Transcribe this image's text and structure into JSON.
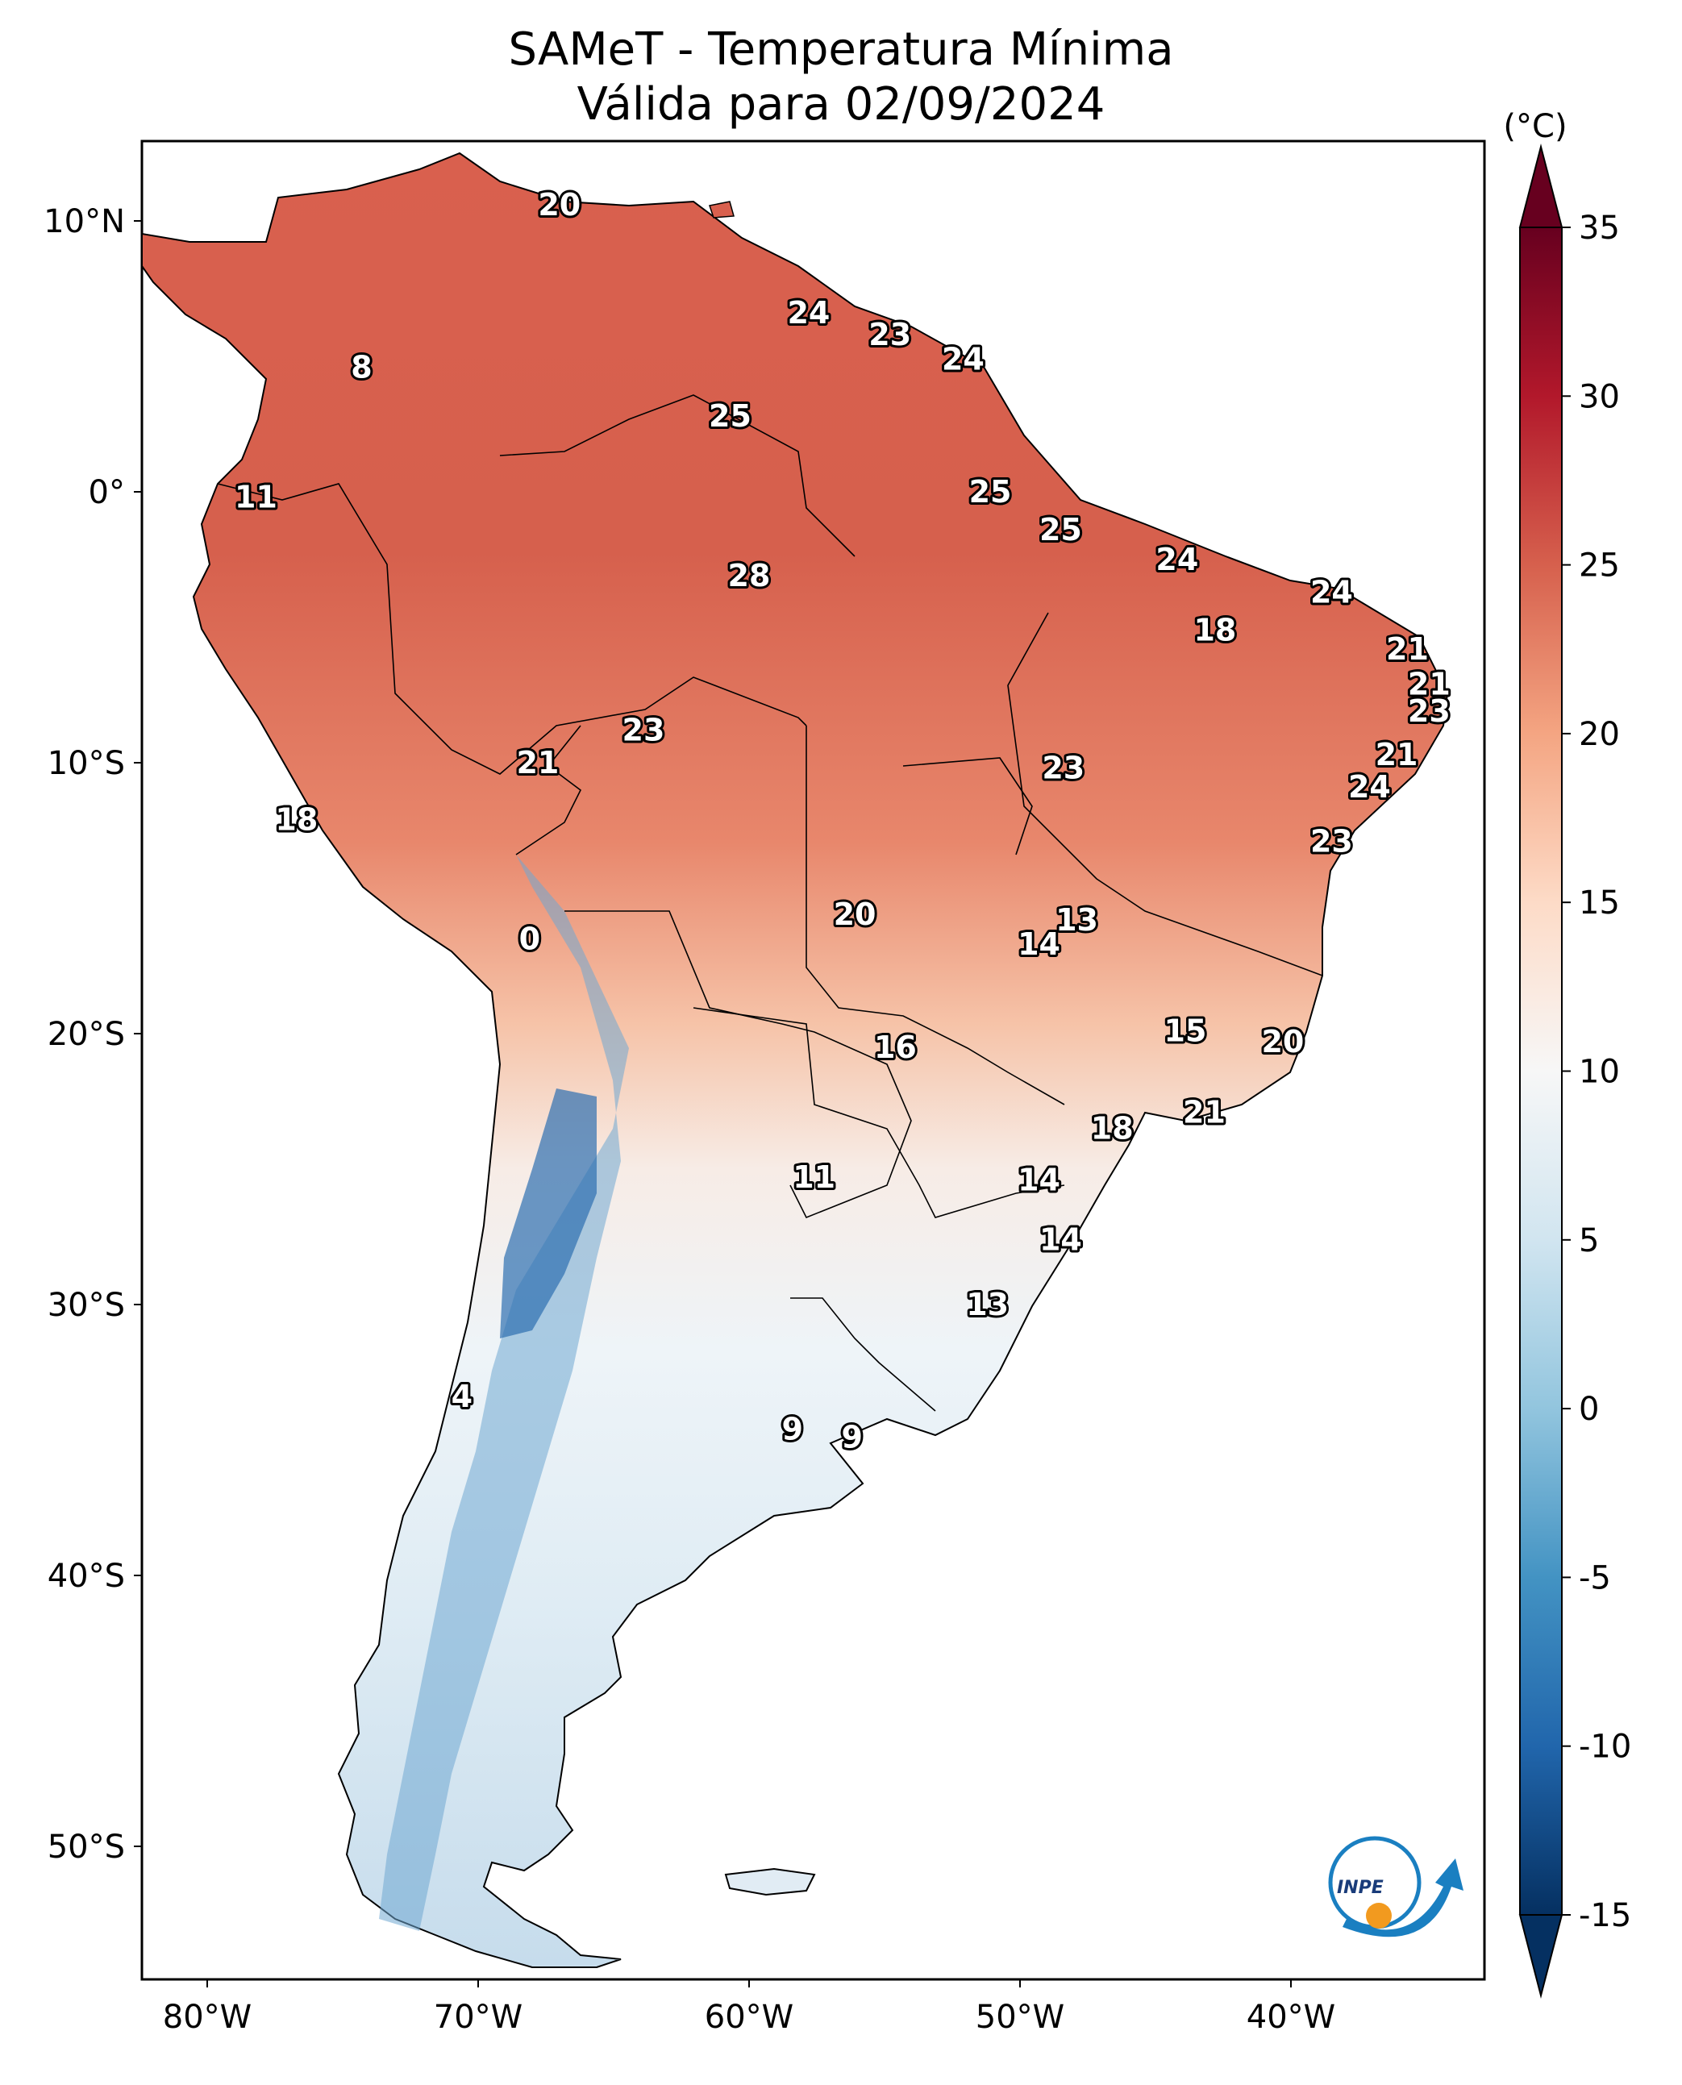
{
  "title_line1": "SAMeT - Temperatura Mínima",
  "title_line2": "Válida para 02/09/2024",
  "colorbar": {
    "unit": "(°C)",
    "ticks": [
      "35",
      "30",
      "25",
      "20",
      "15",
      "10",
      "5",
      "0",
      "-5",
      "-10",
      "-15"
    ],
    "min": -15,
    "max": 35,
    "colors": [
      "#053061",
      "#2166ac",
      "#4393c3",
      "#92c5de",
      "#d1e5f0",
      "#f7f7f7",
      "#fddbc7",
      "#f4a582",
      "#d6604d",
      "#b2182b",
      "#67001f"
    ]
  },
  "lat_labels": [
    "10°N",
    "0°",
    "10°S",
    "20°S",
    "30°S",
    "40°S",
    "50°S"
  ],
  "lon_labels": [
    "80°W",
    "70°W",
    "60°W",
    "50°W",
    "40°W"
  ],
  "stations": [
    {
      "value": "20",
      "lon": -67.0,
      "lat": 10.6
    },
    {
      "value": "24",
      "lon": -57.8,
      "lat": 6.6
    },
    {
      "value": "23",
      "lon": -54.8,
      "lat": 5.8
    },
    {
      "value": "24",
      "lon": -52.1,
      "lat": 4.9
    },
    {
      "value": "8",
      "lon": -74.3,
      "lat": 4.6
    },
    {
      "value": "25",
      "lon": -60.7,
      "lat": 2.8
    },
    {
      "value": "11",
      "lon": -78.2,
      "lat": -0.2
    },
    {
      "value": "25",
      "lon": -51.1,
      "lat": 0.0
    },
    {
      "value": "25",
      "lon": -48.5,
      "lat": -1.4
    },
    {
      "value": "24",
      "lon": -44.2,
      "lat": -2.5
    },
    {
      "value": "24",
      "lon": -38.5,
      "lat": -3.7
    },
    {
      "value": "28",
      "lon": -60.0,
      "lat": -3.1
    },
    {
      "value": "18",
      "lon": -42.8,
      "lat": -5.1
    },
    {
      "value": "21",
      "lon": -35.7,
      "lat": -5.8
    },
    {
      "value": "21",
      "lon": -34.9,
      "lat": -7.1
    },
    {
      "value": "23",
      "lon": -34.9,
      "lat": -8.1
    },
    {
      "value": "23",
      "lon": -63.9,
      "lat": -8.8
    },
    {
      "value": "21",
      "lon": -67.8,
      "lat": -10.0
    },
    {
      "value": "23",
      "lon": -48.4,
      "lat": -10.2
    },
    {
      "value": "21",
      "lon": -36.1,
      "lat": -9.7
    },
    {
      "value": "24",
      "lon": -37.1,
      "lat": -10.9
    },
    {
      "value": "18",
      "lon": -76.7,
      "lat": -12.1
    },
    {
      "value": "23",
      "lon": -38.5,
      "lat": -12.9
    },
    {
      "value": "20",
      "lon": -56.1,
      "lat": -15.6
    },
    {
      "value": "13",
      "lon": -47.9,
      "lat": -15.8
    },
    {
      "value": "14",
      "lon": -49.3,
      "lat": -16.7
    },
    {
      "value": "0",
      "lon": -68.1,
      "lat": -16.5
    },
    {
      "value": "15",
      "lon": -43.9,
      "lat": -19.9
    },
    {
      "value": "20",
      "lon": -40.3,
      "lat": -20.3
    },
    {
      "value": "16",
      "lon": -54.6,
      "lat": -20.5
    },
    {
      "value": "21",
      "lon": -43.2,
      "lat": -22.9
    },
    {
      "value": "18",
      "lon": -46.6,
      "lat": -23.5
    },
    {
      "value": "11",
      "lon": -57.6,
      "lat": -25.3
    },
    {
      "value": "14",
      "lon": -49.3,
      "lat": -25.4
    },
    {
      "value": "14",
      "lon": -48.5,
      "lat": -27.6
    },
    {
      "value": "13",
      "lon": -51.2,
      "lat": -30.0
    },
    {
      "value": "4",
      "lon": -70.6,
      "lat": -33.4
    },
    {
      "value": "9",
      "lon": -58.4,
      "lat": -34.6
    },
    {
      "value": "9",
      "lon": -56.2,
      "lat": -34.9
    }
  ],
  "logo": {
    "text": "INPE"
  }
}
